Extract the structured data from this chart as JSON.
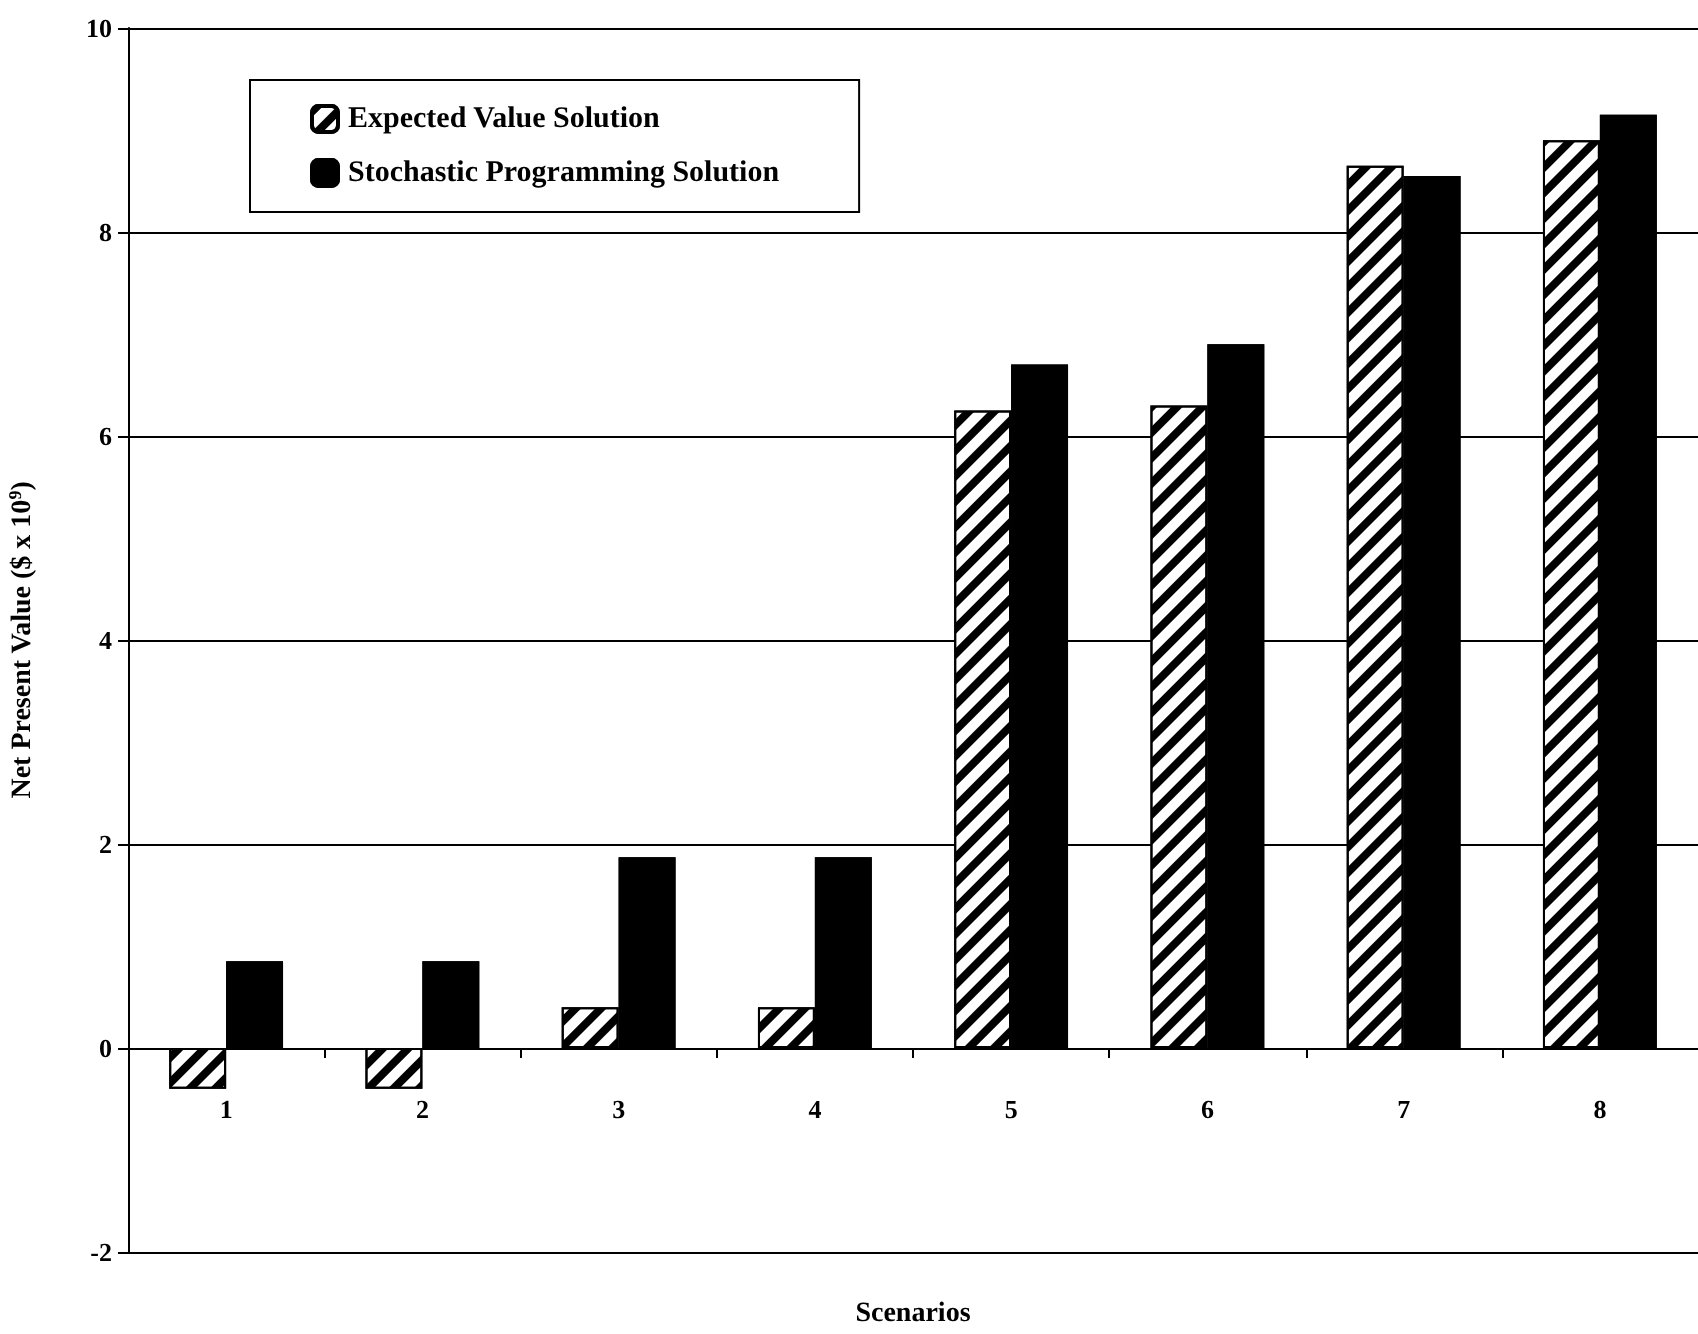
{
  "chart_data": {
    "type": "bar",
    "xlabel": "Scenarios",
    "ylabel": "Net Present Value ($ x 10$^{9}$)",
    "categories": [
      "1",
      "2",
      "3",
      "4",
      "5",
      "6",
      "7",
      "8"
    ],
    "series": [
      {
        "name": "Expected Value Solution",
        "color": "#ffffff",
        "values": [
          -0.4,
          -0.4,
          0.4,
          0.4,
          6.25,
          6.3,
          8.65,
          8.9
        ]
      },
      {
        "name": "Stochastic Programming Solution",
        "color": "#000000",
        "values": [
          0.85,
          0.85,
          1.87,
          1.87,
          6.7,
          6.9,
          8.55,
          9.15
        ]
      }
    ],
    "ylim": [
      -2,
      10
    ],
    "yticks": [
      -2,
      0,
      2,
      4,
      6,
      8,
      10
    ],
    "grid": "y",
    "legend": "top left"
  }
}
